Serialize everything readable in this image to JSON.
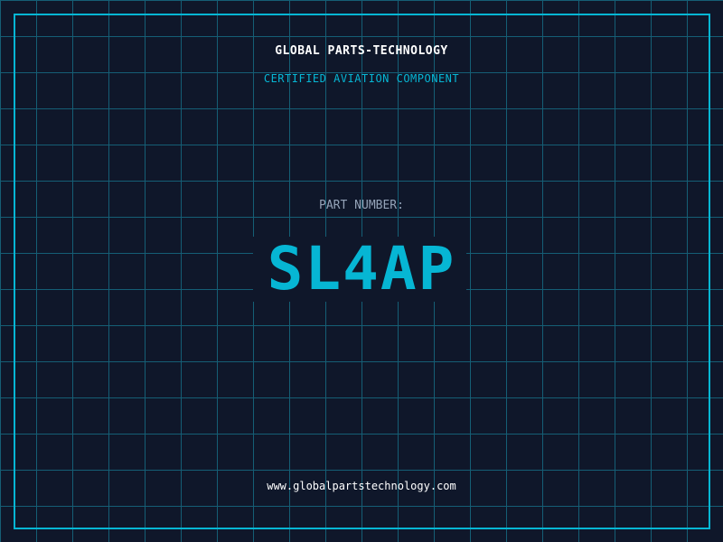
{
  "company": "GLOBAL PARTS-TECHNOLOGY",
  "certification": "CERTIFIED AVIATION COMPONENT",
  "part_number_label": "PART NUMBER:",
  "part_number": "SL4AP",
  "website": "www.globalpartstechnology.com",
  "colors": {
    "background": "#0f172a",
    "accent": "#06b6d4",
    "grid": "#155e75"
  }
}
